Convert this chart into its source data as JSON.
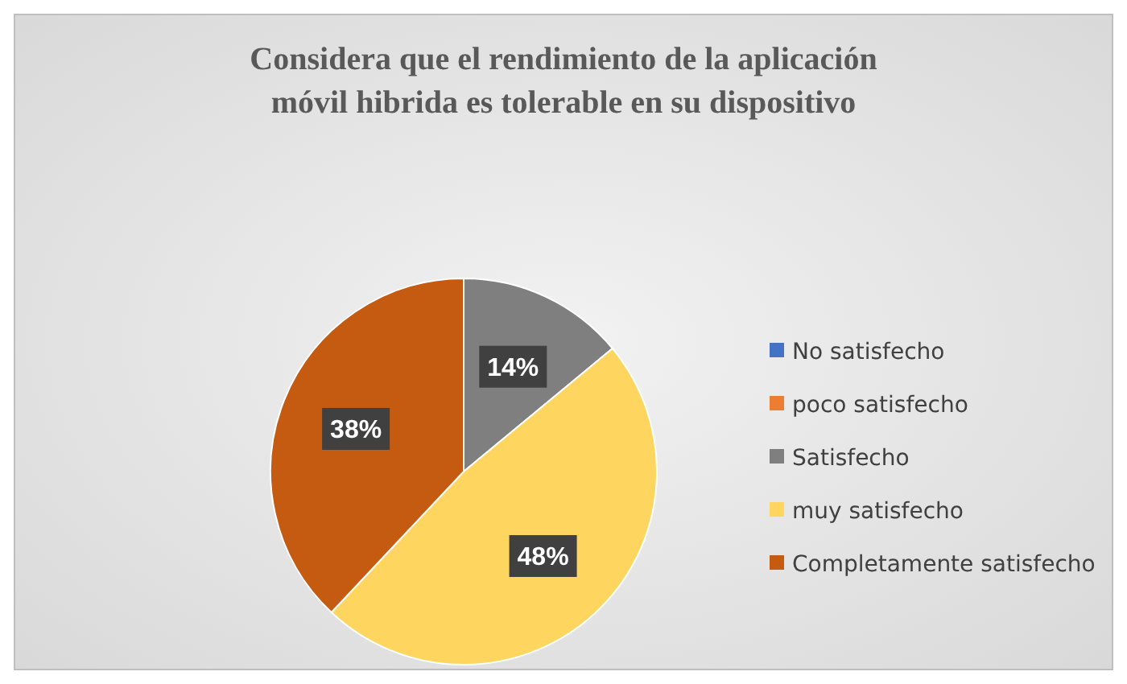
{
  "chart_data": {
    "type": "pie",
    "title": "Considera que el rendimiento de la aplicación móvil hibrida es tolerable en su dispositivo",
    "categories": [
      "No satisfecho",
      "poco satisfecho",
      "Satisfecho",
      "muy satisfecho",
      "Completamente satisfecho"
    ],
    "values": [
      0,
      0,
      14,
      48,
      38
    ],
    "colors": [
      "#4472c4",
      "#ed7d31",
      "#7f7f7f",
      "#fdd55f",
      "#c55a11"
    ],
    "value_labels": [
      null,
      null,
      "14%",
      "48%",
      "38%"
    ],
    "legend": "right"
  }
}
